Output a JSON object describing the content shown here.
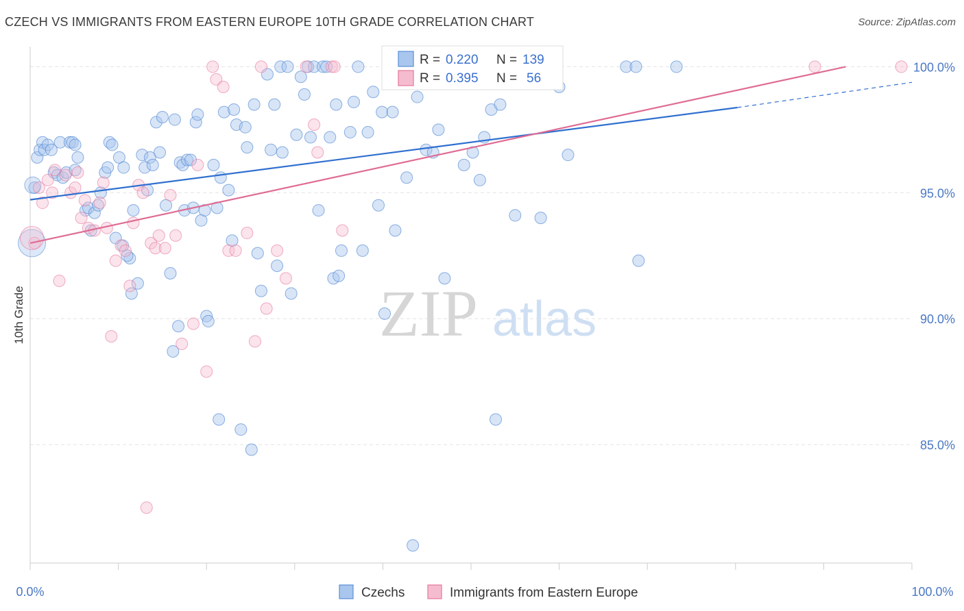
{
  "title": "CZECH VS IMMIGRANTS FROM EASTERN EUROPE 10TH GRADE CORRELATION CHART",
  "source": "Source: ZipAtlas.com",
  "watermark": {
    "zip": "ZIP",
    "atlas": "atlas"
  },
  "colors": {
    "czech": "#5b8fd6",
    "czech_fill": "#a9c6ee",
    "eastern": "#e6769c",
    "eastern_fill": "#f5bcd0",
    "grid": "#e3e3e3"
  },
  "legend": {
    "r_label": "R =",
    "n_label": "N =",
    "czech": {
      "r": "0.220",
      "n": "139"
    },
    "eastern": {
      "r": "0.395",
      "n": "56"
    }
  },
  "chart_data": {
    "type": "scatter",
    "title": "CZECH VS IMMIGRANTS FROM EASTERN EUROPE 10TH GRADE CORRELATION CHART",
    "xlabel": "",
    "ylabel": "10th Grade",
    "xlim": [
      0,
      100
    ],
    "ylim": [
      80.3,
      100.8
    ],
    "x_tick_labels": [
      "0.0%",
      "100.0%"
    ],
    "y_ticks": [
      85,
      90,
      95,
      100
    ],
    "y_tick_labels": [
      "85.0%",
      "90.0%",
      "95.0%",
      "100.0%"
    ],
    "grid": true,
    "legend_position": "top-center",
    "series": [
      {
        "name": "Czechs",
        "trend": {
          "x0": 0,
          "y0": 94.72,
          "x1": 80.2,
          "y1": 98.38,
          "dash_to_x": 100,
          "dash_to_y": 99.38
        },
        "points": [
          [
            0.5,
            95.2
          ],
          [
            0.8,
            96.4
          ],
          [
            1.1,
            96.7
          ],
          [
            1.4,
            97.0
          ],
          [
            1.6,
            96.7
          ],
          [
            2.0,
            96.9
          ],
          [
            2.4,
            96.7
          ],
          [
            2.7,
            95.8
          ],
          [
            3.1,
            95.7
          ],
          [
            3.4,
            97.0
          ],
          [
            3.7,
            95.6
          ],
          [
            4.1,
            95.8
          ],
          [
            4.5,
            97.0
          ],
          [
            4.8,
            97.0
          ],
          [
            5.1,
            96.9
          ],
          [
            5.4,
            96.4
          ],
          [
            5.1,
            95.9
          ],
          [
            6.3,
            94.3
          ],
          [
            6.6,
            94.4
          ],
          [
            6.9,
            93.5
          ],
          [
            7.3,
            94.2
          ],
          [
            7.7,
            94.5
          ],
          [
            8.0,
            95.0
          ],
          [
            8.5,
            95.8
          ],
          [
            8.8,
            96.0
          ],
          [
            9.0,
            97.0
          ],
          [
            9.3,
            96.9
          ],
          [
            9.7,
            93.2
          ],
          [
            10.1,
            96.4
          ],
          [
            10.5,
            92.9
          ],
          [
            10.6,
            96.0
          ],
          [
            11.3,
            92.4
          ],
          [
            11.0,
            92.5
          ],
          [
            11.5,
            91.0
          ],
          [
            11.7,
            94.3
          ],
          [
            12.2,
            91.4
          ],
          [
            12.7,
            96.5
          ],
          [
            13.0,
            96.0
          ],
          [
            13.3,
            95.1
          ],
          [
            13.6,
            96.4
          ],
          [
            13.9,
            96.1
          ],
          [
            14.3,
            97.8
          ],
          [
            14.7,
            96.6
          ],
          [
            15.0,
            98.0
          ],
          [
            15.4,
            94.5
          ],
          [
            15.9,
            91.8
          ],
          [
            16.2,
            88.7
          ],
          [
            16.4,
            97.9
          ],
          [
            16.8,
            89.7
          ],
          [
            17.0,
            96.2
          ],
          [
            17.3,
            96.1
          ],
          [
            17.5,
            94.3
          ],
          [
            17.8,
            96.3
          ],
          [
            18.2,
            96.3
          ],
          [
            18.5,
            94.4
          ],
          [
            18.8,
            97.8
          ],
          [
            19.0,
            98.1
          ],
          [
            19.4,
            93.9
          ],
          [
            19.8,
            94.3
          ],
          [
            20.0,
            90.1
          ],
          [
            20.2,
            89.9
          ],
          [
            20.8,
            96.1
          ],
          [
            21.2,
            94.4
          ],
          [
            21.4,
            86.0
          ],
          [
            21.6,
            95.6
          ],
          [
            22.0,
            98.2
          ],
          [
            22.5,
            95.1
          ],
          [
            22.9,
            93.1
          ],
          [
            23.1,
            98.3
          ],
          [
            23.4,
            97.7
          ],
          [
            23.9,
            85.6
          ],
          [
            24.4,
            97.6
          ],
          [
            24.6,
            96.8
          ],
          [
            25.1,
            84.8
          ],
          [
            25.4,
            98.5
          ],
          [
            25.8,
            92.6
          ],
          [
            26.2,
            91.1
          ],
          [
            26.9,
            99.7
          ],
          [
            27.3,
            96.7
          ],
          [
            27.7,
            98.5
          ],
          [
            28.0,
            92.1
          ],
          [
            28.4,
            100.0
          ],
          [
            28.6,
            96.6
          ],
          [
            29.2,
            100.0
          ],
          [
            29.6,
            91.0
          ],
          [
            30.2,
            97.3
          ],
          [
            30.7,
            99.6
          ],
          [
            31.1,
            98.9
          ],
          [
            31.5,
            100.0
          ],
          [
            31.8,
            97.2
          ],
          [
            32.2,
            100.0
          ],
          [
            32.7,
            94.3
          ],
          [
            33.2,
            100.0
          ],
          [
            33.6,
            100.0
          ],
          [
            34.0,
            97.2
          ],
          [
            34.4,
            91.6
          ],
          [
            34.7,
            98.5
          ],
          [
            35.0,
            91.7
          ],
          [
            35.3,
            92.7
          ],
          [
            36.3,
            97.4
          ],
          [
            36.7,
            98.6
          ],
          [
            37.2,
            100.0
          ],
          [
            37.7,
            92.7
          ],
          [
            38.3,
            97.4
          ],
          [
            38.9,
            99.0
          ],
          [
            39.5,
            94.5
          ],
          [
            39.9,
            98.2
          ],
          [
            40.2,
            90.2
          ],
          [
            41.1,
            98.2
          ],
          [
            41.4,
            93.5
          ],
          [
            42.0,
            100.0
          ],
          [
            42.7,
            95.6
          ],
          [
            43.4,
            81.0
          ],
          [
            43.9,
            98.8
          ],
          [
            44.9,
            96.7
          ],
          [
            45.7,
            96.6
          ],
          [
            46.3,
            97.5
          ],
          [
            47.0,
            91.6
          ],
          [
            48.0,
            100.0
          ],
          [
            49.2,
            96.1
          ],
          [
            50.2,
            96.6
          ],
          [
            51.0,
            95.5
          ],
          [
            51.5,
            97.2
          ],
          [
            51.8,
            100.0
          ],
          [
            52.3,
            98.3
          ],
          [
            52.8,
            86.0
          ],
          [
            53.3,
            98.5
          ],
          [
            54.1,
            100.0
          ],
          [
            55.0,
            94.1
          ],
          [
            56.4,
            100.0
          ],
          [
            56.9,
            99.7
          ],
          [
            57.9,
            94.0
          ],
          [
            58.8,
            100.0
          ],
          [
            59.1,
            99.4
          ],
          [
            60.0,
            99.2
          ],
          [
            61.0,
            96.5
          ],
          [
            67.6,
            100.0
          ],
          [
            68.7,
            100.0
          ],
          [
            73.3,
            100.0
          ],
          [
            69.0,
            92.3
          ]
        ]
      },
      {
        "name": "Immigrants from Eastern Europe",
        "trend": {
          "x0": 0,
          "y0": 93.0,
          "x1": 92.5,
          "y1": 100.0
        },
        "points": [
          [
            0.5,
            93.0
          ],
          [
            1.0,
            95.2
          ],
          [
            1.4,
            94.6
          ],
          [
            2.0,
            95.5
          ],
          [
            2.5,
            95.0
          ],
          [
            2.8,
            95.9
          ],
          [
            3.3,
            91.5
          ],
          [
            4.0,
            95.7
          ],
          [
            4.6,
            95.0
          ],
          [
            5.1,
            95.2
          ],
          [
            5.4,
            95.8
          ],
          [
            5.8,
            94.0
          ],
          [
            6.2,
            94.7
          ],
          [
            6.6,
            93.6
          ],
          [
            7.3,
            93.5
          ],
          [
            7.9,
            94.6
          ],
          [
            8.3,
            95.4
          ],
          [
            8.7,
            93.6
          ],
          [
            9.2,
            89.3
          ],
          [
            9.7,
            92.3
          ],
          [
            10.3,
            92.9
          ],
          [
            10.8,
            92.7
          ],
          [
            11.3,
            91.3
          ],
          [
            11.7,
            93.8
          ],
          [
            12.3,
            95.3
          ],
          [
            12.8,
            95.0
          ],
          [
            13.2,
            82.5
          ],
          [
            13.7,
            93.0
          ],
          [
            14.2,
            92.8
          ],
          [
            14.6,
            93.3
          ],
          [
            15.3,
            92.8
          ],
          [
            15.9,
            94.9
          ],
          [
            16.5,
            93.3
          ],
          [
            17.2,
            89.0
          ],
          [
            18.5,
            89.8
          ],
          [
            19.0,
            96.1
          ],
          [
            20.0,
            87.9
          ],
          [
            20.7,
            100.0
          ],
          [
            21.1,
            99.5
          ],
          [
            21.9,
            99.2
          ],
          [
            22.5,
            92.7
          ],
          [
            23.3,
            92.7
          ],
          [
            24.6,
            93.4
          ],
          [
            25.5,
            89.1
          ],
          [
            26.2,
            100.0
          ],
          [
            26.8,
            90.4
          ],
          [
            28.0,
            92.7
          ],
          [
            29.0,
            91.6
          ],
          [
            31.3,
            100.0
          ],
          [
            32.2,
            97.7
          ],
          [
            32.6,
            96.6
          ],
          [
            34.2,
            100.0
          ],
          [
            34.5,
            100.0
          ],
          [
            35.4,
            93.5
          ],
          [
            89.0,
            100.0
          ],
          [
            98.8,
            100.0
          ]
        ]
      }
    ]
  },
  "bottom_legend": {
    "czechs": "Czechs",
    "eastern": "Immigrants from Eastern Europe"
  }
}
